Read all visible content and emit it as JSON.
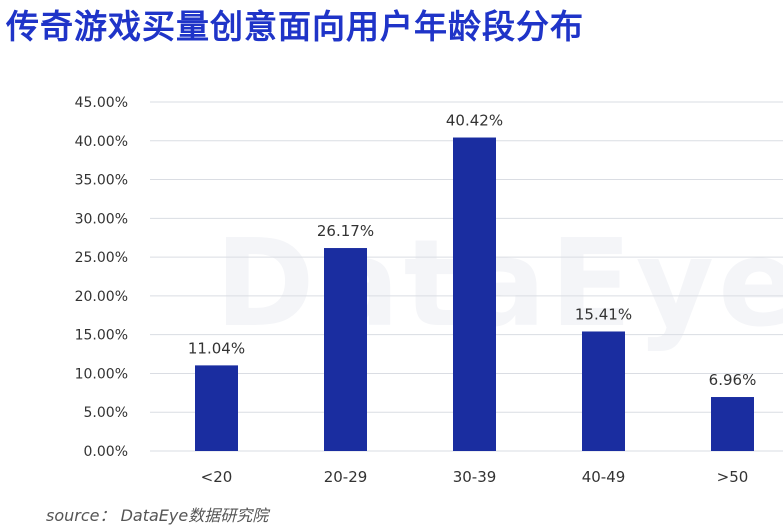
{
  "title": "传奇游戏买量创意面向用户年龄段分布",
  "watermark": "DataEye",
  "source": "source： DataEye数据研究院",
  "colors": {
    "bar": "#1a2da0",
    "title": "#1f34c8",
    "grid": "#dadde3",
    "text": "#333333"
  },
  "chart_data": {
    "type": "bar",
    "categories": [
      "<20",
      "20-29",
      "30-39",
      "40-49",
      ">50"
    ],
    "values": [
      11.04,
      26.17,
      40.42,
      15.41,
      6.96
    ],
    "data_labels": [
      "11.04%",
      "26.17%",
      "40.42%",
      "15.41%",
      "6.96%"
    ],
    "title": "传奇游戏买量创意面向用户年龄段分布",
    "xlabel": "",
    "ylabel": "",
    "ylim": [
      0,
      45
    ],
    "yticks": [
      0,
      5,
      10,
      15,
      20,
      25,
      30,
      35,
      40,
      45
    ],
    "ytick_labels": [
      "0.00%",
      "5.00%",
      "10.00%",
      "15.00%",
      "20.00%",
      "25.00%",
      "30.00%",
      "35.00%",
      "40.00%",
      "45.00%"
    ],
    "grid": true,
    "legend": "none"
  }
}
